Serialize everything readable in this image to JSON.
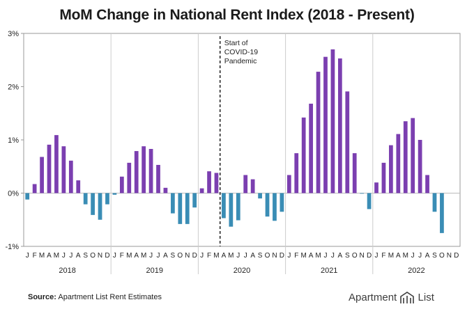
{
  "title": "MoM Change in National Rent Index (2018 - Present)",
  "source_label": "Source:",
  "source_text": "Apartment List Rent Estimates",
  "logo": {
    "name_a": "Apartment",
    "name_b": "List",
    "icon": "apartment-list-logo-icon"
  },
  "colors": {
    "positive": "#7b3fb0",
    "negative": "#3a8db5",
    "grid": "#cccccc",
    "axis": "#999999",
    "text": "#222222"
  },
  "chart_data": {
    "type": "bar",
    "title": "MoM Change in National Rent Index (2018 - Present)",
    "ylim": [
      -1,
      3
    ],
    "y_ticks": [
      -1,
      0,
      1,
      2,
      3
    ],
    "y_tick_labels": [
      "-1%",
      "0%",
      "1%",
      "2%",
      "3%"
    ],
    "grid": false,
    "month_labels": [
      "J",
      "F",
      "M",
      "A",
      "M",
      "J",
      "J",
      "A",
      "S",
      "O",
      "N",
      "D"
    ],
    "years": [
      {
        "year": "2018",
        "values": [
          -0.12,
          0.17,
          0.68,
          0.91,
          1.09,
          0.88,
          0.61,
          0.24,
          -0.21,
          -0.41,
          -0.5,
          -0.21
        ]
      },
      {
        "year": "2019",
        "values": [
          -0.03,
          0.31,
          0.57,
          0.79,
          0.88,
          0.83,
          0.53,
          0.1,
          -0.38,
          -0.58,
          -0.58,
          -0.27
        ]
      },
      {
        "year": "2020",
        "values": [
          0.09,
          0.41,
          0.38,
          -0.47,
          -0.63,
          -0.51,
          0.34,
          0.26,
          -0.1,
          -0.44,
          -0.52,
          -0.35
        ]
      },
      {
        "year": "2021",
        "values": [
          0.34,
          0.75,
          1.42,
          1.68,
          2.28,
          2.56,
          2.7,
          2.53,
          1.91,
          0.75,
          -0.01,
          -0.3
        ]
      },
      {
        "year": "2022",
        "values": [
          0.2,
          0.57,
          0.9,
          1.11,
          1.35,
          1.41,
          1.0,
          0.34,
          -0.35,
          -0.75
        ]
      }
    ],
    "annotation": {
      "text_lines": [
        "Start of",
        "COVID-19",
        "Pandemic"
      ],
      "after_month": "2020-03"
    }
  }
}
